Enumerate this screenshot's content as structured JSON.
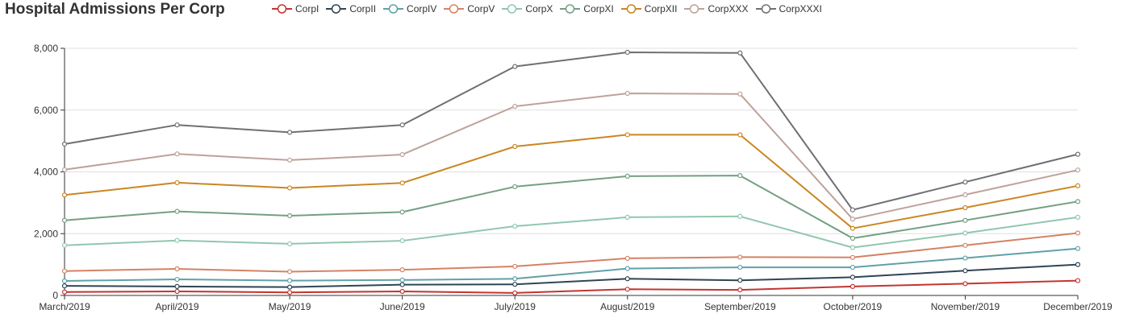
{
  "chart_data": {
    "type": "line",
    "title": "Hospital Admissions Per Corp",
    "categories": [
      "March/2019",
      "April/2019",
      "May/2019",
      "June/2019",
      "July/2019",
      "August/2019",
      "September/2019",
      "October/2019",
      "November/2019",
      "December/2019"
    ],
    "yticks": [
      "0",
      "2,000",
      "4,000",
      "6,000",
      "8,000"
    ],
    "ylim": [
      0,
      8000
    ],
    "grid": true,
    "legend_position": "top",
    "series": [
      {
        "name": "CorpI",
        "color": "#c23531",
        "values": [
          110,
          130,
          100,
          130,
          80,
          200,
          180,
          290,
          380,
          480
        ]
      },
      {
        "name": "CorpII",
        "color": "#2f4554",
        "values": [
          310,
          290,
          270,
          350,
          360,
          540,
          490,
          590,
          800,
          1000
        ]
      },
      {
        "name": "CorpIV",
        "color": "#61a0a8",
        "values": [
          470,
          520,
          480,
          500,
          540,
          870,
          910,
          910,
          1210,
          1520
        ]
      },
      {
        "name": "CorpV",
        "color": "#d48265",
        "values": [
          790,
          860,
          770,
          830,
          940,
          1200,
          1240,
          1230,
          1620,
          2020
        ]
      },
      {
        "name": "CorpX",
        "color": "#91c7ae",
        "values": [
          1620,
          1780,
          1670,
          1770,
          2240,
          2530,
          2560,
          1550,
          2020,
          2530
        ]
      },
      {
        "name": "CorpXI",
        "color": "#749f83",
        "values": [
          2430,
          2720,
          2580,
          2700,
          3520,
          3860,
          3880,
          1850,
          2430,
          3040
        ]
      },
      {
        "name": "CorpXII",
        "color": "#ca8622",
        "values": [
          3250,
          3650,
          3480,
          3640,
          4820,
          5200,
          5200,
          2170,
          2840,
          3550
        ]
      },
      {
        "name": "CorpXXX",
        "color": "#bda29a",
        "values": [
          4070,
          4580,
          4380,
          4560,
          6120,
          6540,
          6520,
          2470,
          3260,
          4060
        ]
      },
      {
        "name": "CorpXXXI",
        "color": "#6e7074",
        "values": [
          4900,
          5520,
          5280,
          5520,
          7410,
          7870,
          7850,
          2770,
          3670,
          4570
        ]
      }
    ]
  }
}
